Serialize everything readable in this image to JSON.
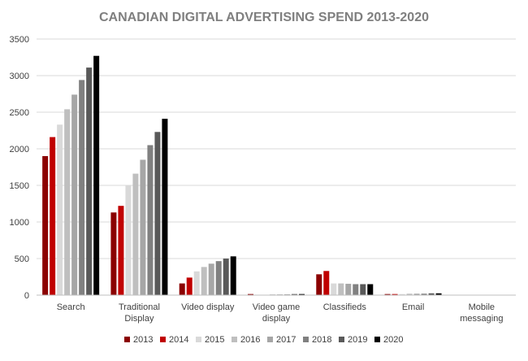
{
  "chart_data": {
    "type": "bar",
    "title": "CANADIAN DIGITAL ADVERTISING SPEND 2013-2020",
    "xlabel": "",
    "ylabel": "",
    "ylim": [
      0,
      3500
    ],
    "yticks": [
      0,
      500,
      1000,
      1500,
      2000,
      2500,
      3000,
      3500
    ],
    "grid": true,
    "legend_position": "bottom",
    "categories": [
      [
        "Search"
      ],
      [
        "Traditional",
        "Display"
      ],
      [
        "Video display"
      ],
      [
        "Video game",
        "display"
      ],
      [
        "Classifieds"
      ],
      [
        "Email"
      ],
      [
        "Mobile",
        "messaging"
      ]
    ],
    "series": [
      {
        "name": "2013",
        "color": "#8b0000",
        "values": [
          1900,
          1130,
          160,
          15,
          285,
          15,
          0
        ]
      },
      {
        "name": "2014",
        "color": "#c00000",
        "values": [
          2160,
          1220,
          240,
          5,
          330,
          15,
          0
        ]
      },
      {
        "name": "2015",
        "color": "#d9d9d9",
        "values": [
          2330,
          1500,
          325,
          5,
          160,
          15,
          0
        ]
      },
      {
        "name": "2016",
        "color": "#bfbfbf",
        "values": [
          2540,
          1660,
          385,
          10,
          160,
          20,
          0
        ]
      },
      {
        "name": "2017",
        "color": "#a6a6a6",
        "values": [
          2740,
          1850,
          430,
          10,
          155,
          20,
          0
        ]
      },
      {
        "name": "2018",
        "color": "#808080",
        "values": [
          2940,
          2050,
          465,
          10,
          150,
          20,
          0
        ]
      },
      {
        "name": "2019",
        "color": "#595959",
        "values": [
          3110,
          2230,
          500,
          15,
          150,
          25,
          0
        ]
      },
      {
        "name": "2020",
        "color": "#000000",
        "values": [
          3270,
          2410,
          530,
          15,
          150,
          25,
          0
        ]
      }
    ]
  }
}
